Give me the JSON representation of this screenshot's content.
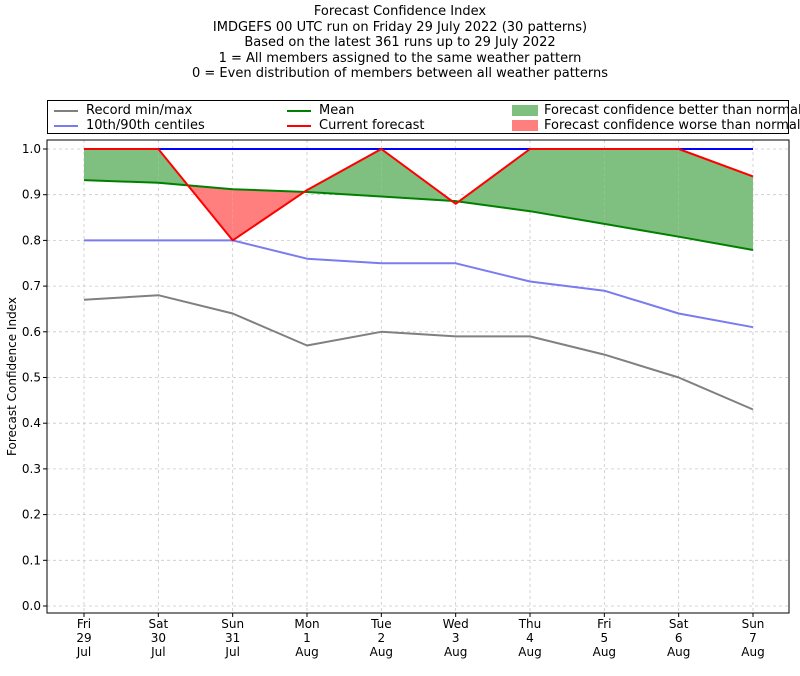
{
  "chart_data": {
    "type": "line",
    "title_lines": [
      "Forecast Confidence Index",
      "IMDGEFS 00 UTC run on Friday 29 July 2022 (30 patterns)",
      "Based on the latest 361 runs up to 29 July 2022",
      "1 = All members assigned to the same weather pattern",
      "0 = Even distribution of members between all weather patterns"
    ],
    "ylabel": "Forecast Confidence Index",
    "xlabel": "",
    "ylim": [
      0,
      1
    ],
    "yticks": [
      "0.0",
      "0.1",
      "0.2",
      "0.3",
      "0.4",
      "0.5",
      "0.6",
      "0.7",
      "0.8",
      "0.9",
      "1.0"
    ],
    "categories": [
      [
        "Fri",
        "29",
        "Jul"
      ],
      [
        "Sat",
        "30",
        "Jul"
      ],
      [
        "Sun",
        "31",
        "Jul"
      ],
      [
        "Mon",
        "1",
        "Aug"
      ],
      [
        "Tue",
        "2",
        "Aug"
      ],
      [
        "Wed",
        "3",
        "Aug"
      ],
      [
        "Thu",
        "4",
        "Aug"
      ],
      [
        "Fri",
        "5",
        "Aug"
      ],
      [
        "Sat",
        "6",
        "Aug"
      ],
      [
        "Sun",
        "7",
        "Aug"
      ]
    ],
    "grid": true,
    "legend_placement": "top",
    "series": [
      {
        "name": "Record min/max",
        "role": "record_max",
        "color": "#808080",
        "values": [
          1.0,
          1.0,
          1.0,
          1.0,
          1.0,
          1.0,
          1.0,
          1.0,
          1.0,
          1.0
        ]
      },
      {
        "name": "",
        "role": "record_min",
        "color": "#808080",
        "values": [
          0.67,
          0.68,
          0.64,
          0.57,
          0.6,
          0.59,
          0.59,
          0.55,
          0.5,
          0.43
        ]
      },
      {
        "name": "10th/90th centiles",
        "role": "p90",
        "color": "#0000ff",
        "values": [
          1.0,
          1.0,
          1.0,
          1.0,
          1.0,
          1.0,
          1.0,
          1.0,
          1.0,
          1.0
        ]
      },
      {
        "name": "",
        "role": "p10",
        "color": "#7b7bf0",
        "values": [
          0.8,
          0.8,
          0.8,
          0.76,
          0.75,
          0.75,
          0.71,
          0.69,
          0.64,
          0.61
        ]
      },
      {
        "name": "Mean",
        "role": "mean",
        "color": "#008000",
        "values": [
          0.932,
          0.926,
          0.912,
          0.906,
          0.896,
          0.886,
          0.864,
          0.836,
          0.808,
          0.779
        ]
      },
      {
        "name": "Current forecast",
        "role": "current",
        "color": "#ff0000",
        "values": [
          1.0,
          1.0,
          0.8,
          0.91,
          1.0,
          0.88,
          1.0,
          1.0,
          1.0,
          0.94
        ]
      }
    ],
    "fill_legend": [
      {
        "name": "Forecast confidence better than normal",
        "color": "#7fbf7f"
      },
      {
        "name": "Forecast confidence worse than normal",
        "color": "#ff7f7f"
      }
    ]
  }
}
